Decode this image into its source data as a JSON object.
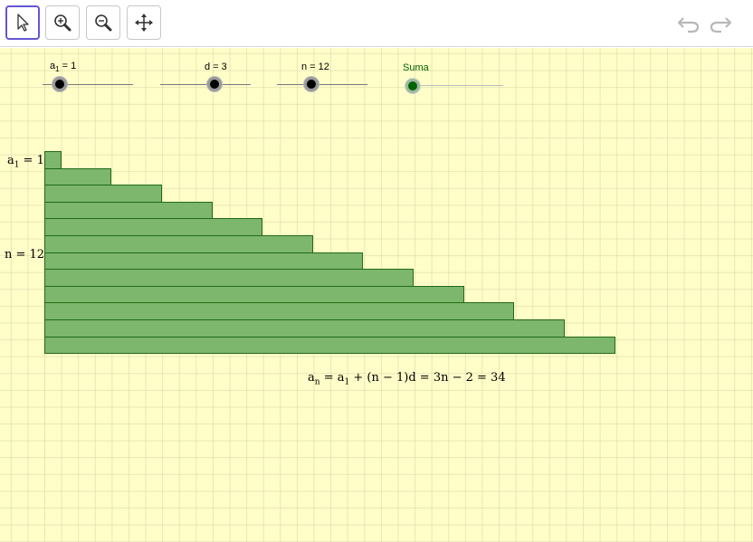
{
  "toolbar": {
    "tools": [
      {
        "name": "move",
        "icon": "pointer-arrow-icon",
        "active": true
      },
      {
        "name": "zoom-in",
        "icon": "zoom-in-icon",
        "active": false
      },
      {
        "name": "zoom-out",
        "icon": "zoom-out-icon",
        "active": false
      },
      {
        "name": "move-graphics-view",
        "icon": "move-arrows-icon",
        "active": false
      }
    ],
    "undo_icon": "undo-icon",
    "redo_icon": "redo-icon"
  },
  "sliders": {
    "a1": {
      "label_main": "a",
      "label_sub": "1",
      "label_rest": " = 1",
      "value": 1
    },
    "d": {
      "label": "d = 3",
      "value": 3
    },
    "n": {
      "label": "n = 12",
      "value": 12
    },
    "suma": {
      "label": "Suma"
    }
  },
  "labels": {
    "a1_main": "a",
    "a1_sub": "1",
    "a1_rest": " = 1",
    "n_label": "n = 12"
  },
  "formula": {
    "lhs_main": "a",
    "lhs_sub": "n",
    "eq1": " = ",
    "a_main": "a",
    "a_sub": "1",
    "rest": " + (n − 1)d = 3n − 2 = 34"
  },
  "bars": {
    "lengths": [
      1,
      4,
      7,
      10,
      13,
      16,
      19,
      22,
      25,
      28,
      31,
      34
    ],
    "fill": "#7db66d",
    "stroke": "#206b16"
  },
  "colors": {
    "background": "#fffdc8",
    "tool_active_border": "#6557d2",
    "suma_color": "#006400"
  }
}
